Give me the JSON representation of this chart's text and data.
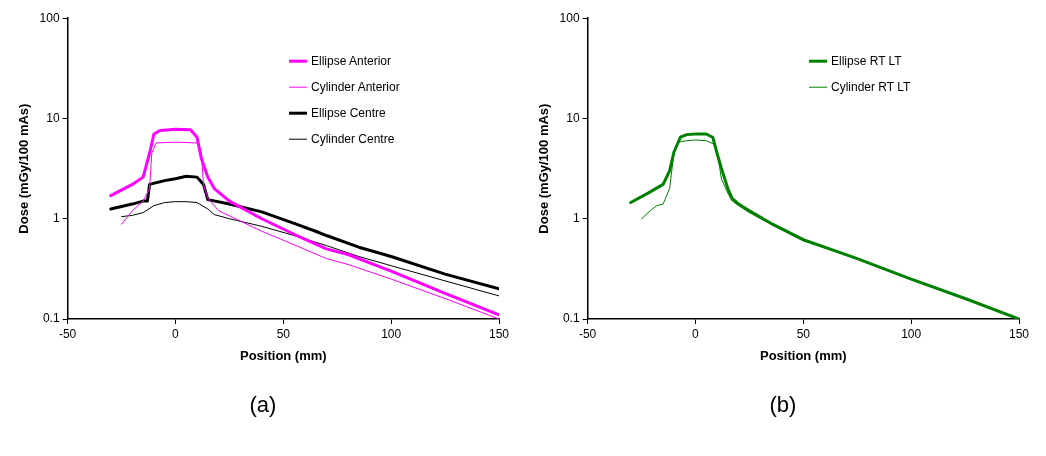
{
  "chart_data": [
    {
      "type": "line",
      "xlabel": "Position (mm)",
      "ylabel": "Dose (mGy/100 mAs)",
      "log": "y",
      "grid": false,
      "legend": "top right",
      "marker": "none",
      "line_style": "solid",
      "xlim": [
        -50,
        150
      ],
      "xticks": [
        -50,
        0,
        50,
        100,
        150
      ],
      "ylim": [
        0.1,
        100
      ],
      "yticks": [
        0.1,
        1,
        10,
        100
      ],
      "annotations": [
        "(a)"
      ],
      "series": [
        {
          "name": "Ellipse Anterior",
          "color": "#ff00ff",
          "x": [
            -30,
            -20,
            -15,
            -12,
            -10,
            -7,
            0,
            7,
            10,
            12,
            15,
            18,
            25,
            40,
            55,
            70,
            80,
            100,
            125,
            150
          ],
          "values": [
            1.7,
            2.2,
            2.6,
            4.5,
            7.0,
            7.6,
            7.8,
            7.7,
            6.5,
            4.0,
            2.6,
            2.0,
            1.5,
            1.0,
            0.7,
            0.5,
            0.44,
            0.3,
            0.18,
            0.11
          ]
        },
        {
          "name": "Cylinder Anterior",
          "color": "#ff00ff",
          "x": [
            -25,
            -20,
            -15,
            -12,
            -11,
            -9,
            0,
            10,
            12,
            13,
            15,
            20,
            30,
            40,
            55,
            70,
            80,
            100,
            125,
            150
          ],
          "values": [
            0.88,
            1.2,
            1.5,
            2.0,
            4.5,
            5.7,
            5.8,
            5.7,
            4.5,
            2.2,
            1.6,
            1.2,
            0.95,
            0.75,
            0.55,
            0.4,
            0.35,
            0.25,
            0.16,
            0.1
          ]
        },
        {
          "name": "Ellipse Centre",
          "color": "#000000",
          "x": [
            -30,
            -20,
            -15,
            -13,
            -12,
            -5,
            0,
            5,
            10,
            13,
            15,
            25,
            40,
            55,
            65,
            70,
            85,
            100,
            125,
            150
          ],
          "values": [
            1.25,
            1.4,
            1.5,
            1.5,
            2.2,
            2.4,
            2.5,
            2.65,
            2.6,
            2.2,
            1.55,
            1.4,
            1.17,
            0.9,
            0.75,
            0.68,
            0.52,
            0.42,
            0.28,
            0.2
          ]
        },
        {
          "name": "Cylinder Centre",
          "color": "#000000",
          "x": [
            -25,
            -20,
            -15,
            -10,
            -5,
            0,
            5,
            10,
            15,
            18,
            25,
            40,
            55,
            70,
            85,
            100,
            125,
            150
          ],
          "values": [
            1.05,
            1.08,
            1.15,
            1.35,
            1.45,
            1.48,
            1.48,
            1.45,
            1.25,
            1.1,
            1.0,
            0.84,
            0.68,
            0.54,
            0.42,
            0.34,
            0.24,
            0.17
          ]
        }
      ]
    },
    {
      "type": "line",
      "xlabel": "Position (mm)",
      "ylabel": "Dose (mGy/100 mAs)",
      "log": "y",
      "grid": false,
      "legend": "top right",
      "marker": "none",
      "line_style": "solid",
      "xlim": [
        -50,
        150
      ],
      "xticks": [
        -50,
        0,
        50,
        100,
        150
      ],
      "ylim": [
        0.1,
        100
      ],
      "yticks": [
        0.1,
        1,
        10,
        100
      ],
      "annotations": [
        "(b)"
      ],
      "series": [
        {
          "name": "Ellipse RT LT",
          "color": "#008000",
          "x": [
            -30,
            -22,
            -15,
            -12,
            -10,
            -7,
            -4,
            0,
            5,
            8,
            10,
            12,
            15,
            17,
            20,
            25,
            35,
            50,
            75,
            100,
            125,
            150
          ],
          "values": [
            1.45,
            1.8,
            2.2,
            3.0,
            4.6,
            6.5,
            6.9,
            7.0,
            7.0,
            6.5,
            4.5,
            3.2,
            2.0,
            1.6,
            1.4,
            1.2,
            0.9,
            0.62,
            0.4,
            0.25,
            0.16,
            0.1
          ]
        },
        {
          "name": "Cylinder RT LT",
          "color": "#008000",
          "x": [
            -25,
            -21,
            -18,
            -15,
            -12,
            -10,
            -8,
            -4,
            0,
            5,
            9,
            11,
            12,
            15,
            17,
            20,
            25,
            35,
            50,
            75,
            100,
            125,
            150
          ],
          "values": [
            1.0,
            1.2,
            1.35,
            1.4,
            2.0,
            4.5,
            5.8,
            6.0,
            6.1,
            6.0,
            5.5,
            3.5,
            2.5,
            1.8,
            1.5,
            1.35,
            1.15,
            0.88,
            0.6,
            0.4,
            0.25,
            0.16,
            0.1
          ]
        }
      ]
    }
  ]
}
